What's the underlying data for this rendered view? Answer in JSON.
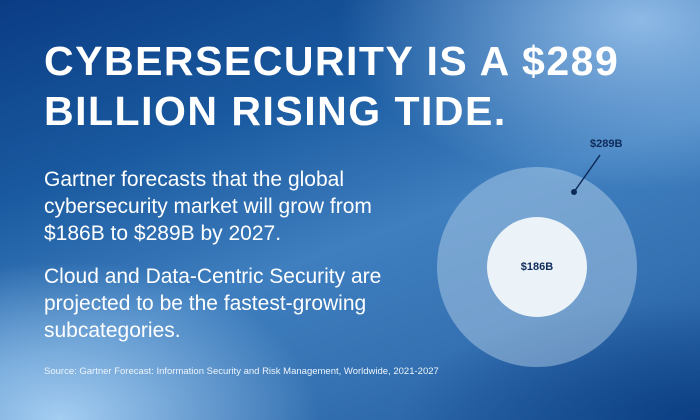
{
  "headline": {
    "line1": "CYBERSECURITY IS A $289",
    "line2": "BILLION RISING TIDE."
  },
  "paragraph1": "Gartner forecasts that the global cybersecurity market will grow from $186B to $289B by 2027.",
  "paragraph2": "Cloud and Data-Centric Security are projected to be the fastest-growing subcategories.",
  "source": "Source: Gartner Forecast: Information Security and Risk Management, Worldwide, 2021-2027",
  "graphic": {
    "outer_label": "$289B",
    "inner_label": "$186B",
    "outer_value": 289,
    "inner_value": 186,
    "colors": {
      "label": "#0d2b5a",
      "inner": "#ebf2f8"
    }
  }
}
